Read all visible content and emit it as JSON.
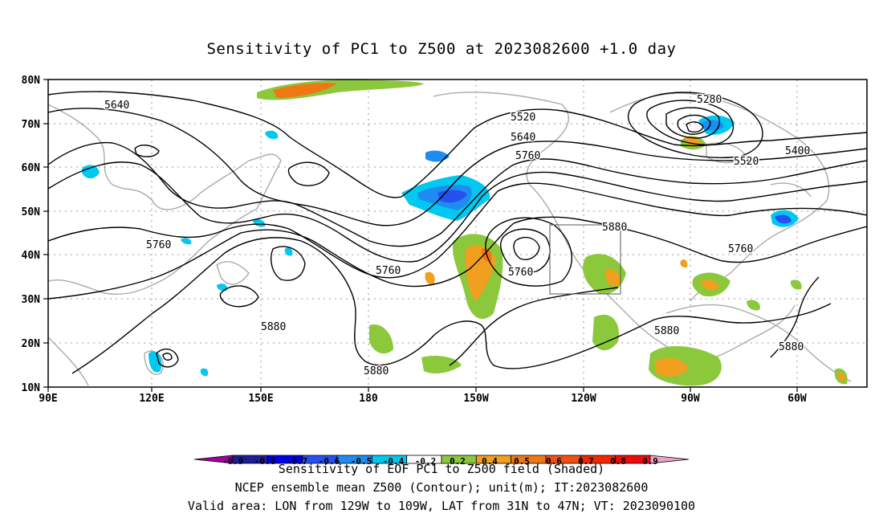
{
  "title": "Sensitivity of PC1 to Z500 at 2023082600 +1.0 day",
  "captions": [
    "Sensitivity of EOF PC1 to Z500 field (Shaded)",
    "NCEP ensemble mean Z500 (Contour); unit(m); IT:2023082600",
    "Valid area: LON from 129W to 109W, LAT from 31N to 47N; VT: 2023090100"
  ],
  "map": {
    "lon_labels": [
      "90E",
      "120E",
      "150E",
      "180",
      "150W",
      "120W",
      "90W",
      "60W"
    ],
    "lat_labels": [
      "80N",
      "70N",
      "60N",
      "50N",
      "40N",
      "30N",
      "20N",
      "10N"
    ],
    "contour_labels": [
      "5640",
      "5520",
      "5640",
      "5760",
      "5280",
      "5400",
      "5520",
      "5760",
      "5880",
      "5760",
      "5760",
      "5880",
      "5880",
      "5760",
      "5880",
      "5880"
    ],
    "valid_box": {
      "lon_from": "129W",
      "lon_to": "109W",
      "lat_from": "31N",
      "lat_to": "47N"
    }
  },
  "colorbar": {
    "labels": [
      "-0.9",
      "-0.8",
      "-0.7",
      "-0.6",
      "-0.5",
      "-0.4",
      "-0.2",
      "0.2",
      "0.4",
      "0.5",
      "0.6",
      "0.7",
      "0.8",
      "0.9"
    ],
    "colors": [
      "#a000a0",
      "#1e1e96",
      "#0000e6",
      "#2850f0",
      "#1e8cf0",
      "#00c8f0",
      "#ffffff",
      "#8cc83c",
      "#f0a01e",
      "#f07814",
      "#f05014",
      "#f02800",
      "#f00a0a",
      "#f0a0c8"
    ]
  },
  "colors": {
    "positive_light": "#8cc83c",
    "positive_mid": "#f0a01e",
    "positive_high": "#f07814",
    "negative_light": "#00c8f0",
    "negative_mid": "#1e8cf0",
    "negative_high": "#2850f0",
    "coast": "#aaaaaa"
  }
}
